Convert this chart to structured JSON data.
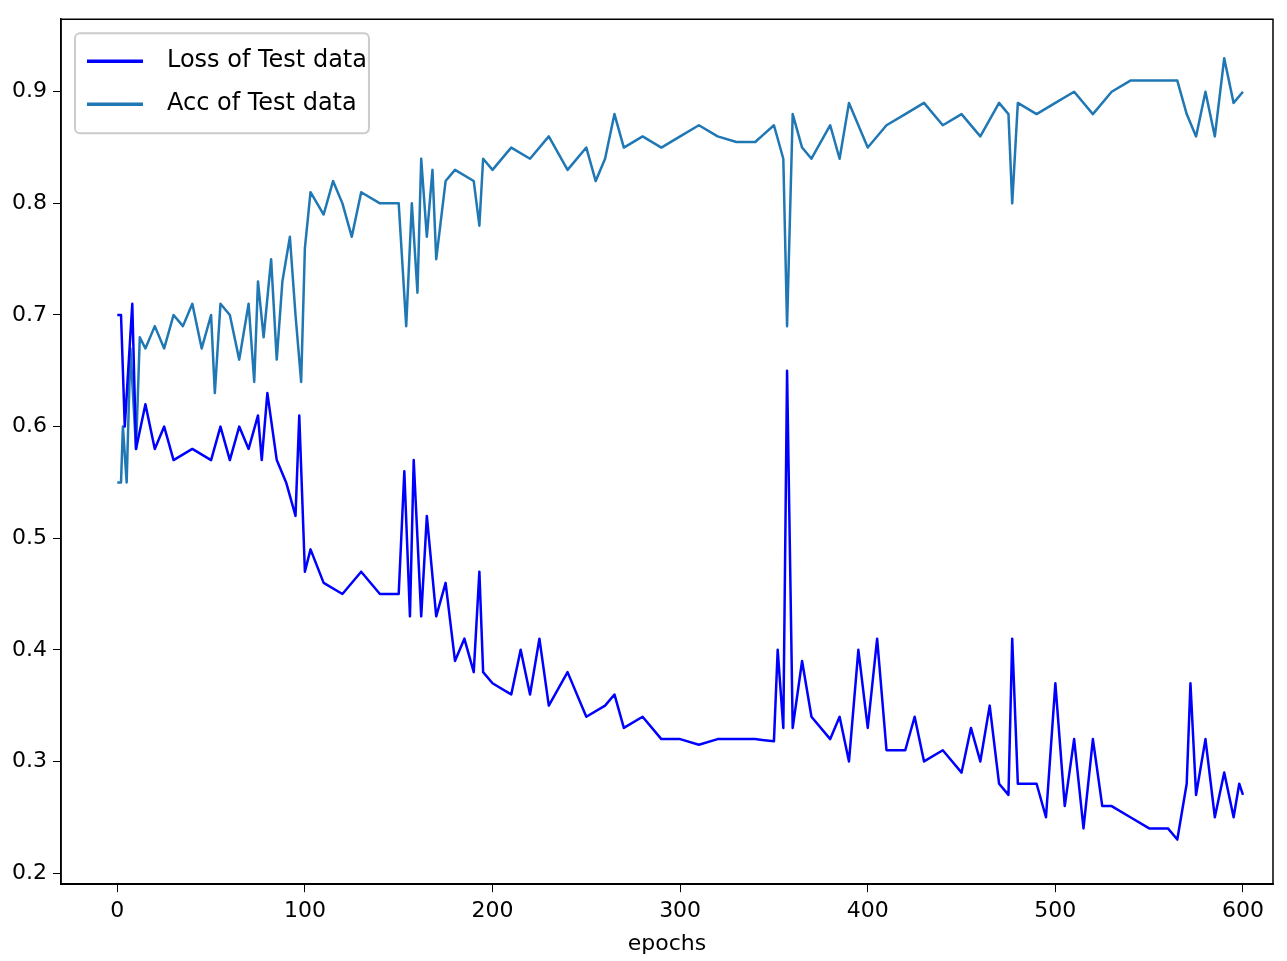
{
  "chart_data": {
    "type": "line",
    "xlabel": "epochs",
    "xlim": [
      -30,
      616
    ],
    "ylim": [
      0.19,
      0.965
    ],
    "xticks": [
      0,
      100,
      200,
      300,
      400,
      500,
      600
    ],
    "yticks": [
      0.2,
      0.3,
      0.4,
      0.5,
      0.6,
      0.7,
      0.8,
      0.9
    ],
    "grid": false,
    "legend": "top left",
    "marker": "none",
    "line_style": "solid",
    "series": [
      {
        "name": "Loss of Test data",
        "color": "#0000ff",
        "x": [
          0,
          2,
          4,
          8,
          10,
          15,
          20,
          25,
          30,
          40,
          50,
          55,
          60,
          65,
          70,
          75,
          77,
          80,
          85,
          90,
          95,
          97,
          100,
          103,
          110,
          120,
          130,
          140,
          150,
          153,
          156,
          158,
          162,
          165,
          170,
          175,
          180,
          185,
          190,
          193,
          195,
          200,
          210,
          215,
          220,
          225,
          230,
          240,
          250,
          260,
          265,
          270,
          280,
          290,
          300,
          310,
          320,
          330,
          340,
          350,
          352,
          355,
          357,
          360,
          365,
          370,
          380,
          385,
          390,
          395,
          400,
          405,
          410,
          420,
          425,
          430,
          440,
          450,
          455,
          460,
          465,
          470,
          475,
          477,
          480,
          490,
          495,
          500,
          505,
          510,
          515,
          520,
          525,
          530,
          540,
          550,
          560,
          565,
          570,
          572,
          575,
          580,
          585,
          590,
          595,
          598,
          600
        ],
        "values": [
          0.7,
          0.7,
          0.6,
          0.71,
          0.58,
          0.62,
          0.58,
          0.6,
          0.57,
          0.58,
          0.57,
          0.6,
          0.57,
          0.6,
          0.58,
          0.61,
          0.57,
          0.63,
          0.57,
          0.55,
          0.52,
          0.61,
          0.47,
          0.49,
          0.46,
          0.45,
          0.47,
          0.45,
          0.45,
          0.56,
          0.43,
          0.57,
          0.43,
          0.52,
          0.43,
          0.46,
          0.39,
          0.41,
          0.38,
          0.47,
          0.38,
          0.37,
          0.36,
          0.4,
          0.36,
          0.41,
          0.35,
          0.38,
          0.34,
          0.35,
          0.36,
          0.33,
          0.34,
          0.32,
          0.32,
          0.315,
          0.32,
          0.32,
          0.32,
          0.318,
          0.4,
          0.33,
          0.65,
          0.33,
          0.39,
          0.34,
          0.32,
          0.34,
          0.3,
          0.4,
          0.33,
          0.41,
          0.31,
          0.31,
          0.34,
          0.3,
          0.31,
          0.29,
          0.33,
          0.3,
          0.35,
          0.28,
          0.27,
          0.41,
          0.28,
          0.28,
          0.25,
          0.37,
          0.26,
          0.32,
          0.24,
          0.32,
          0.26,
          0.26,
          0.25,
          0.24,
          0.24,
          0.23,
          0.28,
          0.37,
          0.27,
          0.32,
          0.25,
          0.29,
          0.25,
          0.28,
          0.27
        ]
      },
      {
        "name": "Acc of Test data",
        "color": "#1f77b4",
        "x": [
          0,
          2,
          3,
          5,
          7,
          10,
          12,
          15,
          20,
          25,
          30,
          35,
          40,
          45,
          50,
          52,
          55,
          60,
          65,
          70,
          73,
          75,
          78,
          82,
          85,
          88,
          92,
          95,
          98,
          100,
          103,
          110,
          115,
          120,
          125,
          130,
          140,
          150,
          154,
          157,
          160,
          162,
          165,
          168,
          170,
          175,
          180,
          190,
          193,
          195,
          200,
          210,
          220,
          230,
          240,
          250,
          255,
          260,
          265,
          270,
          280,
          290,
          300,
          310,
          320,
          330,
          340,
          350,
          355,
          357,
          360,
          365,
          370,
          380,
          385,
          390,
          400,
          410,
          420,
          430,
          440,
          450,
          460,
          470,
          475,
          477,
          480,
          490,
          500,
          510,
          520,
          530,
          540,
          550,
          560,
          565,
          570,
          575,
          580,
          585,
          590,
          595,
          600
        ],
        "values": [
          0.55,
          0.55,
          0.6,
          0.55,
          0.67,
          0.58,
          0.68,
          0.67,
          0.69,
          0.67,
          0.7,
          0.69,
          0.71,
          0.67,
          0.7,
          0.63,
          0.71,
          0.7,
          0.66,
          0.71,
          0.64,
          0.73,
          0.68,
          0.75,
          0.66,
          0.73,
          0.77,
          0.7,
          0.64,
          0.76,
          0.81,
          0.79,
          0.82,
          0.8,
          0.77,
          0.81,
          0.8,
          0.8,
          0.69,
          0.8,
          0.72,
          0.84,
          0.77,
          0.83,
          0.75,
          0.82,
          0.83,
          0.82,
          0.78,
          0.84,
          0.83,
          0.85,
          0.84,
          0.86,
          0.83,
          0.85,
          0.82,
          0.84,
          0.88,
          0.85,
          0.86,
          0.85,
          0.86,
          0.87,
          0.86,
          0.855,
          0.855,
          0.87,
          0.84,
          0.69,
          0.88,
          0.85,
          0.84,
          0.87,
          0.84,
          0.89,
          0.85,
          0.87,
          0.88,
          0.89,
          0.87,
          0.88,
          0.86,
          0.89,
          0.88,
          0.8,
          0.89,
          0.88,
          0.89,
          0.9,
          0.88,
          0.9,
          0.91,
          0.91,
          0.91,
          0.91,
          0.88,
          0.86,
          0.9,
          0.86,
          0.93,
          0.89,
          0.9
        ]
      }
    ]
  }
}
